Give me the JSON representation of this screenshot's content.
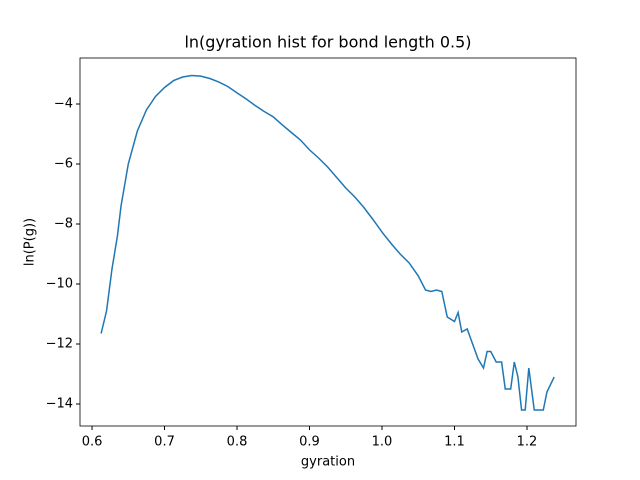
{
  "chart_data": {
    "type": "line",
    "title": "ln(gyration hist for bond length 0.5)",
    "xlabel": "gyration",
    "ylabel": "ln(P(g))",
    "x": [
      0.6125,
      0.62,
      0.6275,
      0.635,
      0.64,
      0.65,
      0.6625,
      0.675,
      0.6875,
      0.7,
      0.7125,
      0.725,
      0.7375,
      0.75,
      0.7625,
      0.775,
      0.7875,
      0.8,
      0.8125,
      0.825,
      0.8375,
      0.85,
      0.8625,
      0.875,
      0.8875,
      0.9,
      0.9125,
      0.925,
      0.9375,
      0.95,
      0.9625,
      0.975,
      0.9875,
      1.0,
      1.0125,
      1.025,
      1.0375,
      1.05,
      1.06,
      1.0675,
      1.075,
      1.0825,
      1.09,
      1.1,
      1.105,
      1.11,
      1.1175,
      1.125,
      1.1325,
      1.14,
      1.145,
      1.15,
      1.1575,
      1.165,
      1.17,
      1.1775,
      1.1825,
      1.1875,
      1.1925,
      1.1975,
      1.2025,
      1.21,
      1.215,
      1.2225,
      1.2275,
      1.2375
    ],
    "series": [
      {
        "name": "ln(P(g))",
        "color": "#1f77b4",
        "values": [
          -11.65,
          -10.9,
          -9.5,
          -8.4,
          -7.4,
          -6.0,
          -4.9,
          -4.2,
          -3.75,
          -3.45,
          -3.22,
          -3.1,
          -3.05,
          -3.07,
          -3.15,
          -3.27,
          -3.42,
          -3.63,
          -3.83,
          -4.05,
          -4.25,
          -4.43,
          -4.7,
          -4.95,
          -5.2,
          -5.53,
          -5.8,
          -6.1,
          -6.45,
          -6.8,
          -7.1,
          -7.45,
          -7.85,
          -8.27,
          -8.65,
          -9.0,
          -9.3,
          -9.73,
          -10.2,
          -10.25,
          -10.2,
          -10.25,
          -11.1,
          -11.25,
          -10.95,
          -11.6,
          -11.5,
          -12.0,
          -12.5,
          -12.8,
          -12.25,
          -12.25,
          -12.6,
          -12.6,
          -13.5,
          -13.5,
          -12.6,
          -13.1,
          -14.2,
          -14.2,
          -12.8,
          -14.2,
          -14.2,
          -14.2,
          -13.6,
          -13.1
        ]
      }
    ],
    "xlim": [
      0.5834,
      1.2676
    ],
    "ylim": [
      -14.733,
      -2.467
    ],
    "xticks": [
      0.6,
      0.7,
      0.8,
      0.9,
      {
        "value": 1,
        "label": "1.0"
      },
      1.1,
      1.2
    ],
    "yticks": [
      {
        "value": -14,
        "label": "−14"
      },
      {
        "value": -12,
        "label": "−12"
      },
      {
        "value": -10,
        "label": "−10"
      },
      {
        "value": -8,
        "label": "−8"
      },
      {
        "value": -6,
        "label": "−6"
      },
      {
        "value": -4,
        "label": "−4"
      }
    ]
  }
}
